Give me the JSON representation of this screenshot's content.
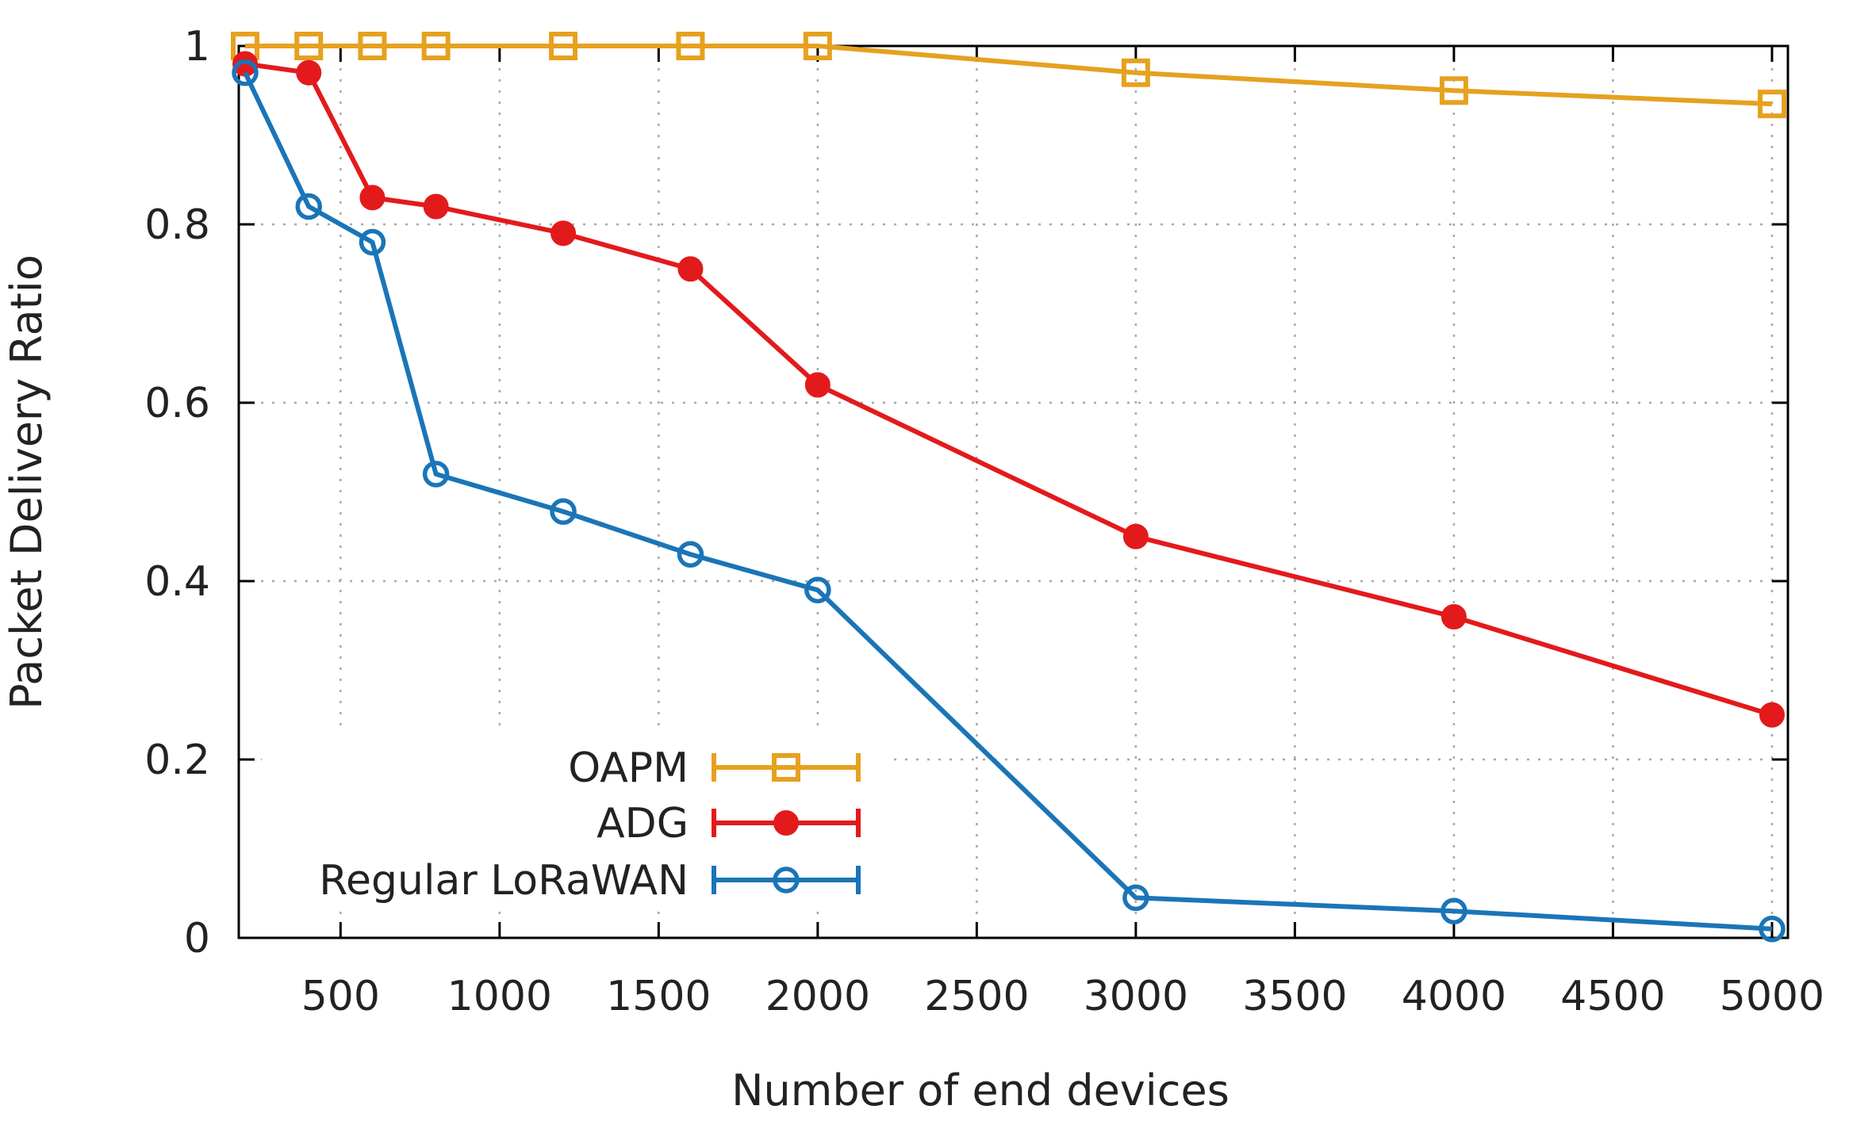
{
  "chart_data": {
    "type": "line",
    "title": "",
    "xlabel": "Number of end devices",
    "ylabel": "Packet Delivery Ratio",
    "xlim": [
      180,
      5050
    ],
    "ylim": [
      0,
      1.0
    ],
    "xticks": [
      500,
      1000,
      1500,
      2000,
      2500,
      3000,
      3500,
      4000,
      4500,
      5000
    ],
    "xtick_labels": [
      "500",
      "1000",
      "1500",
      "2000",
      "2500",
      "3000",
      "3500",
      "4000",
      "4500",
      "5000"
    ],
    "yticks": [
      0,
      0.2,
      0.4,
      0.6,
      0.8,
      1
    ],
    "ytick_labels": [
      "0",
      "0.2",
      "0.4",
      "0.6",
      "0.8",
      "1"
    ],
    "grid": true,
    "legend_position": "bottom-left",
    "x": [
      200,
      400,
      600,
      800,
      1200,
      1600,
      2000,
      3000,
      4000,
      5000
    ],
    "series": [
      {
        "name": "OAPM",
        "color": "#e6a11f",
        "marker": "open-square",
        "values": [
          1.0,
          1.0,
          1.0,
          1.0,
          1.0,
          1.0,
          1.0,
          0.97,
          0.95,
          0.935
        ]
      },
      {
        "name": "ADG",
        "color": "#e31a1c",
        "marker": "filled-circle",
        "values": [
          0.98,
          0.97,
          0.83,
          0.82,
          0.79,
          0.75,
          0.62,
          0.45,
          0.36,
          0.25
        ]
      },
      {
        "name": "Regular LoRaWAN",
        "color": "#1a75b8",
        "marker": "open-circle",
        "values": [
          0.97,
          0.82,
          0.78,
          0.52,
          0.478,
          0.43,
          0.39,
          0.045,
          0.03,
          0.01
        ]
      }
    ]
  }
}
